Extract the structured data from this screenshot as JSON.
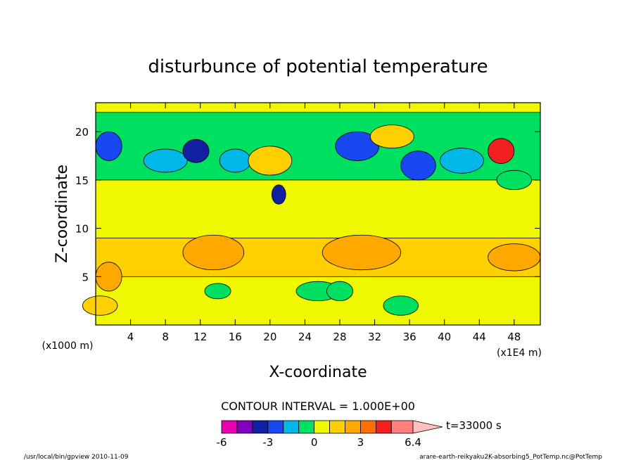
{
  "chart_data": {
    "type": "heatmap",
    "title": "disturbunce of potential temperature",
    "xlabel": "X-coordinate",
    "ylabel": "Z-coordinate",
    "x_unit_label": "(x1E4 m)",
    "y_unit_label": "(x1000 m)",
    "xlim": [
      0,
      51
    ],
    "ylim": [
      0,
      23
    ],
    "x_ticks": [
      4,
      8,
      12,
      16,
      20,
      24,
      28,
      32,
      36,
      40,
      44,
      48
    ],
    "y_ticks": [
      5,
      10,
      15,
      20
    ],
    "contour_interval_text": "CONTOUR INTERVAL = 1.000E+00",
    "time_label": "t=33000 s",
    "colorbar": {
      "min": -6,
      "max": 6.4,
      "tick_labels": [
        "-6",
        "-3",
        "0",
        "3",
        "6.4"
      ],
      "tick_values": [
        -6,
        -3,
        0,
        3,
        6.4
      ],
      "bins": [
        {
          "lo": -6,
          "hi": -5,
          "color": "#e800b0"
        },
        {
          "lo": -5,
          "hi": -4,
          "color": "#8000c0"
        },
        {
          "lo": -4,
          "hi": -3,
          "color": "#1020a0"
        },
        {
          "lo": -3,
          "hi": -2,
          "color": "#1848f0"
        },
        {
          "lo": -2,
          "hi": -1,
          "color": "#00b8e8"
        },
        {
          "lo": -1,
          "hi": 0,
          "color": "#00e060"
        },
        {
          "lo": 0,
          "hi": 1,
          "color": "#f0f800"
        },
        {
          "lo": 1,
          "hi": 2,
          "color": "#ffd000"
        },
        {
          "lo": 2,
          "hi": 3,
          "color": "#ffa800"
        },
        {
          "lo": 3,
          "hi": 4,
          "color": "#ff7000"
        },
        {
          "lo": 4,
          "hi": 5,
          "color": "#f02020"
        },
        {
          "lo": 5,
          "hi": 6.4,
          "color": "#ff8080"
        }
      ],
      "overflow_color": "#ffc0c0"
    },
    "background_value": 0.5,
    "features": [
      {
        "kind": "band",
        "x": [
          0,
          51
        ],
        "z": [
          5,
          9
        ],
        "value": 1.5
      },
      {
        "kind": "blob",
        "x": 13.5,
        "z": 7.5,
        "rx": 3.5,
        "rz": 1.8,
        "value": 2.5
      },
      {
        "kind": "blob",
        "x": 30.5,
        "z": 7.5,
        "rx": 4.5,
        "rz": 1.8,
        "value": 2.5
      },
      {
        "kind": "blob",
        "x": 48,
        "z": 7,
        "rx": 3,
        "rz": 1.4,
        "value": 2.5
      },
      {
        "kind": "blob",
        "x": 1.5,
        "z": 5,
        "rx": 1.5,
        "rz": 1.5,
        "value": 2.5
      },
      {
        "kind": "band",
        "x": [
          0,
          51
        ],
        "z": [
          15,
          22
        ],
        "value": -0.5
      },
      {
        "kind": "blob",
        "x": 1.5,
        "z": 18.5,
        "rx": 1.5,
        "rz": 1.5,
        "value": -2.5
      },
      {
        "kind": "blob",
        "x": 8,
        "z": 17,
        "rx": 2.5,
        "rz": 1.2,
        "value": -2.0
      },
      {
        "kind": "blob",
        "x": 11.5,
        "z": 18,
        "rx": 1.5,
        "rz": 1.2,
        "value": -3.5
      },
      {
        "kind": "blob",
        "x": 16,
        "z": 17,
        "rx": 1.8,
        "rz": 1.2,
        "value": -2.0
      },
      {
        "kind": "blob",
        "x": 20,
        "z": 17,
        "rx": 2.5,
        "rz": 1.5,
        "value": 1.5
      },
      {
        "kind": "blob",
        "x": 30,
        "z": 18.5,
        "rx": 2.5,
        "rz": 1.5,
        "value": -3.0
      },
      {
        "kind": "blob",
        "x": 37,
        "z": 16.5,
        "rx": 2,
        "rz": 1.5,
        "value": -3.0
      },
      {
        "kind": "blob",
        "x": 34,
        "z": 19.5,
        "rx": 2.5,
        "rz": 1.2,
        "value": 1.5
      },
      {
        "kind": "blob",
        "x": 46.5,
        "z": 18,
        "rx": 1.5,
        "rz": 1.3,
        "value": 4.5
      },
      {
        "kind": "blob",
        "x": 42,
        "z": 17,
        "rx": 2.5,
        "rz": 1.3,
        "value": -1.5
      },
      {
        "kind": "blob",
        "x": 48,
        "z": 15,
        "rx": 2,
        "rz": 1,
        "value": -0.5
      },
      {
        "kind": "blob",
        "x": 21,
        "z": 13.5,
        "rx": 0.8,
        "rz": 1,
        "value": -3.5
      },
      {
        "kind": "blob",
        "x": 14,
        "z": 3.5,
        "rx": 1.5,
        "rz": 0.8,
        "value": -0.5
      },
      {
        "kind": "blob",
        "x": 25.5,
        "z": 3.5,
        "rx": 2.5,
        "rz": 1,
        "value": -0.5
      },
      {
        "kind": "blob",
        "x": 28,
        "z": 3.5,
        "rx": 1.5,
        "rz": 1,
        "value": -0.5
      },
      {
        "kind": "blob",
        "x": 35,
        "z": 2,
        "rx": 2,
        "rz": 1,
        "value": -0.5
      },
      {
        "kind": "blob",
        "x": 0.5,
        "z": 2,
        "rx": 2,
        "rz": 1,
        "value": 1.5
      }
    ]
  },
  "footer": {
    "left": "/usr/local/bin/gpview  2010-11-09",
    "right": "arare-earth-reikyaku2K-absorbing5_PotTemp.nc@PotTemp"
  }
}
